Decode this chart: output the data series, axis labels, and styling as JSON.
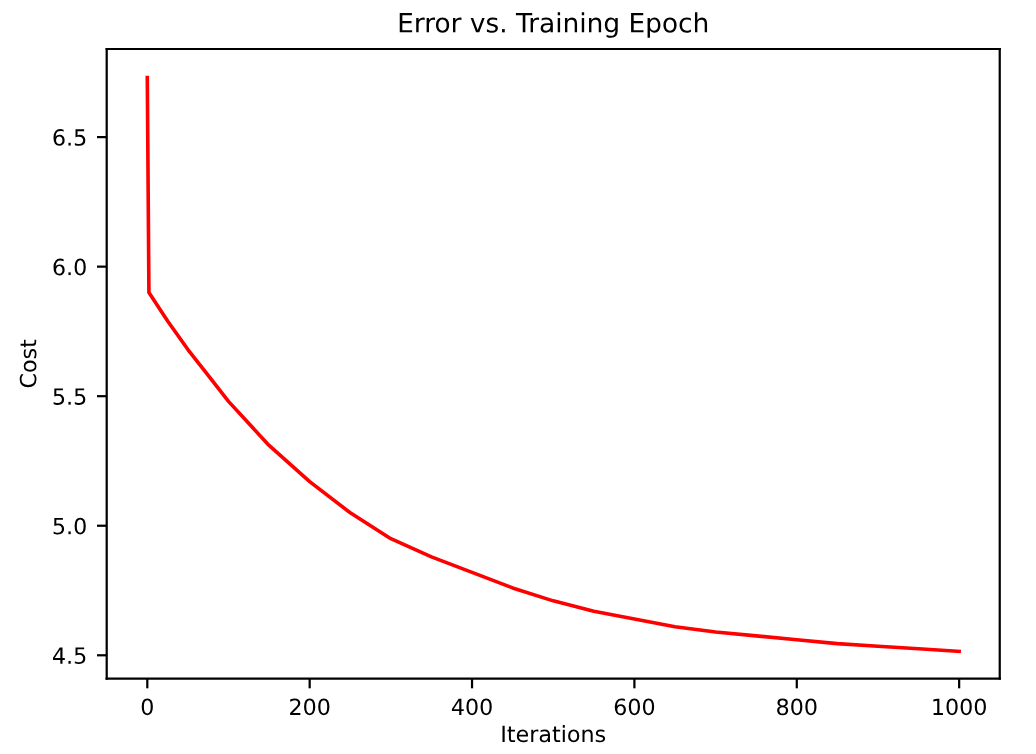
{
  "chart_data": {
    "type": "line",
    "title": "Error vs. Training Epoch",
    "xlabel": "Iterations",
    "ylabel": "Cost",
    "x": [
      0,
      2,
      25,
      50,
      75,
      100,
      150,
      200,
      250,
      300,
      350,
      400,
      450,
      500,
      550,
      600,
      650,
      700,
      750,
      800,
      850,
      900,
      950,
      1000
    ],
    "series": [
      {
        "color": "#ff0000",
        "values": [
          6.73,
          5.9,
          5.79,
          5.68,
          5.58,
          5.48,
          5.31,
          5.17,
          5.05,
          4.95,
          4.88,
          4.82,
          4.76,
          4.71,
          4.67,
          4.64,
          4.61,
          4.59,
          4.575,
          4.56,
          4.545,
          4.535,
          4.525,
          4.515
        ]
      }
    ],
    "xlim": [
      -50,
      1050
    ],
    "ylim": [
      4.41,
      6.84
    ],
    "xticks": [
      0,
      200,
      400,
      600,
      800,
      1000
    ],
    "yticks": [
      {
        "value": 4.5,
        "label": "4.5"
      },
      {
        "value": 5.0,
        "label": "5.0"
      },
      {
        "value": 5.5,
        "label": "5.5"
      },
      {
        "value": 6.0,
        "label": "6.0"
      },
      {
        "value": 6.5,
        "label": "6.5"
      }
    ],
    "grid": false,
    "legend": false
  }
}
